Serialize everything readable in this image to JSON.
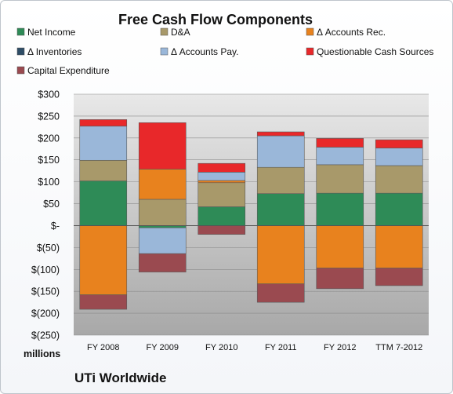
{
  "chart_data": {
    "type": "bar",
    "stacked": true,
    "title": "Free Cash Flow Components",
    "units_label": "millions",
    "footer": "UTi Worldwide",
    "categories": [
      "FY 2008",
      "FY 2009",
      "FY 2010",
      "FY 2011",
      "FY 2012",
      "TTM 7-2012"
    ],
    "ylim": [
      -250,
      300
    ],
    "ytick_step": 50,
    "ytick_labels": [
      "$300",
      "$250",
      "$200",
      "$150",
      "$100",
      "$50",
      "$-",
      "$(50)",
      "$(100)",
      "$(150)",
      "$(200)",
      "$(250)"
    ],
    "grid": true,
    "legend_position": "top",
    "series": [
      {
        "name": "Net Income",
        "color": "#2e8b57",
        "values": [
          102,
          -5,
          43,
          73,
          74,
          74
        ]
      },
      {
        "name": "D&A",
        "color": "#a8996a",
        "values": [
          47,
          60,
          55,
          60,
          65,
          63
        ]
      },
      {
        "name": "Δ Accounts Rec.",
        "color": "#e8821e",
        "values": [
          -158,
          69,
          5,
          -133,
          -97,
          -97
        ]
      },
      {
        "name": "Δ Inventories",
        "color": "#2e4d66",
        "values": [
          0,
          0,
          0,
          0,
          0,
          0
        ]
      },
      {
        "name": "Δ Accounts Pay.",
        "color": "#9ab7d9",
        "values": [
          78,
          -59,
          19,
          72,
          40,
          40
        ]
      },
      {
        "name": "Questionable Cash Sources",
        "color": "#e8282a",
        "values": [
          15,
          106,
          20,
          9,
          20,
          19
        ]
      },
      {
        "name": "Capital Expenditure",
        "color": "#9a4a50",
        "values": [
          -33,
          -42,
          -20,
          -42,
          -47,
          -40
        ]
      }
    ]
  }
}
